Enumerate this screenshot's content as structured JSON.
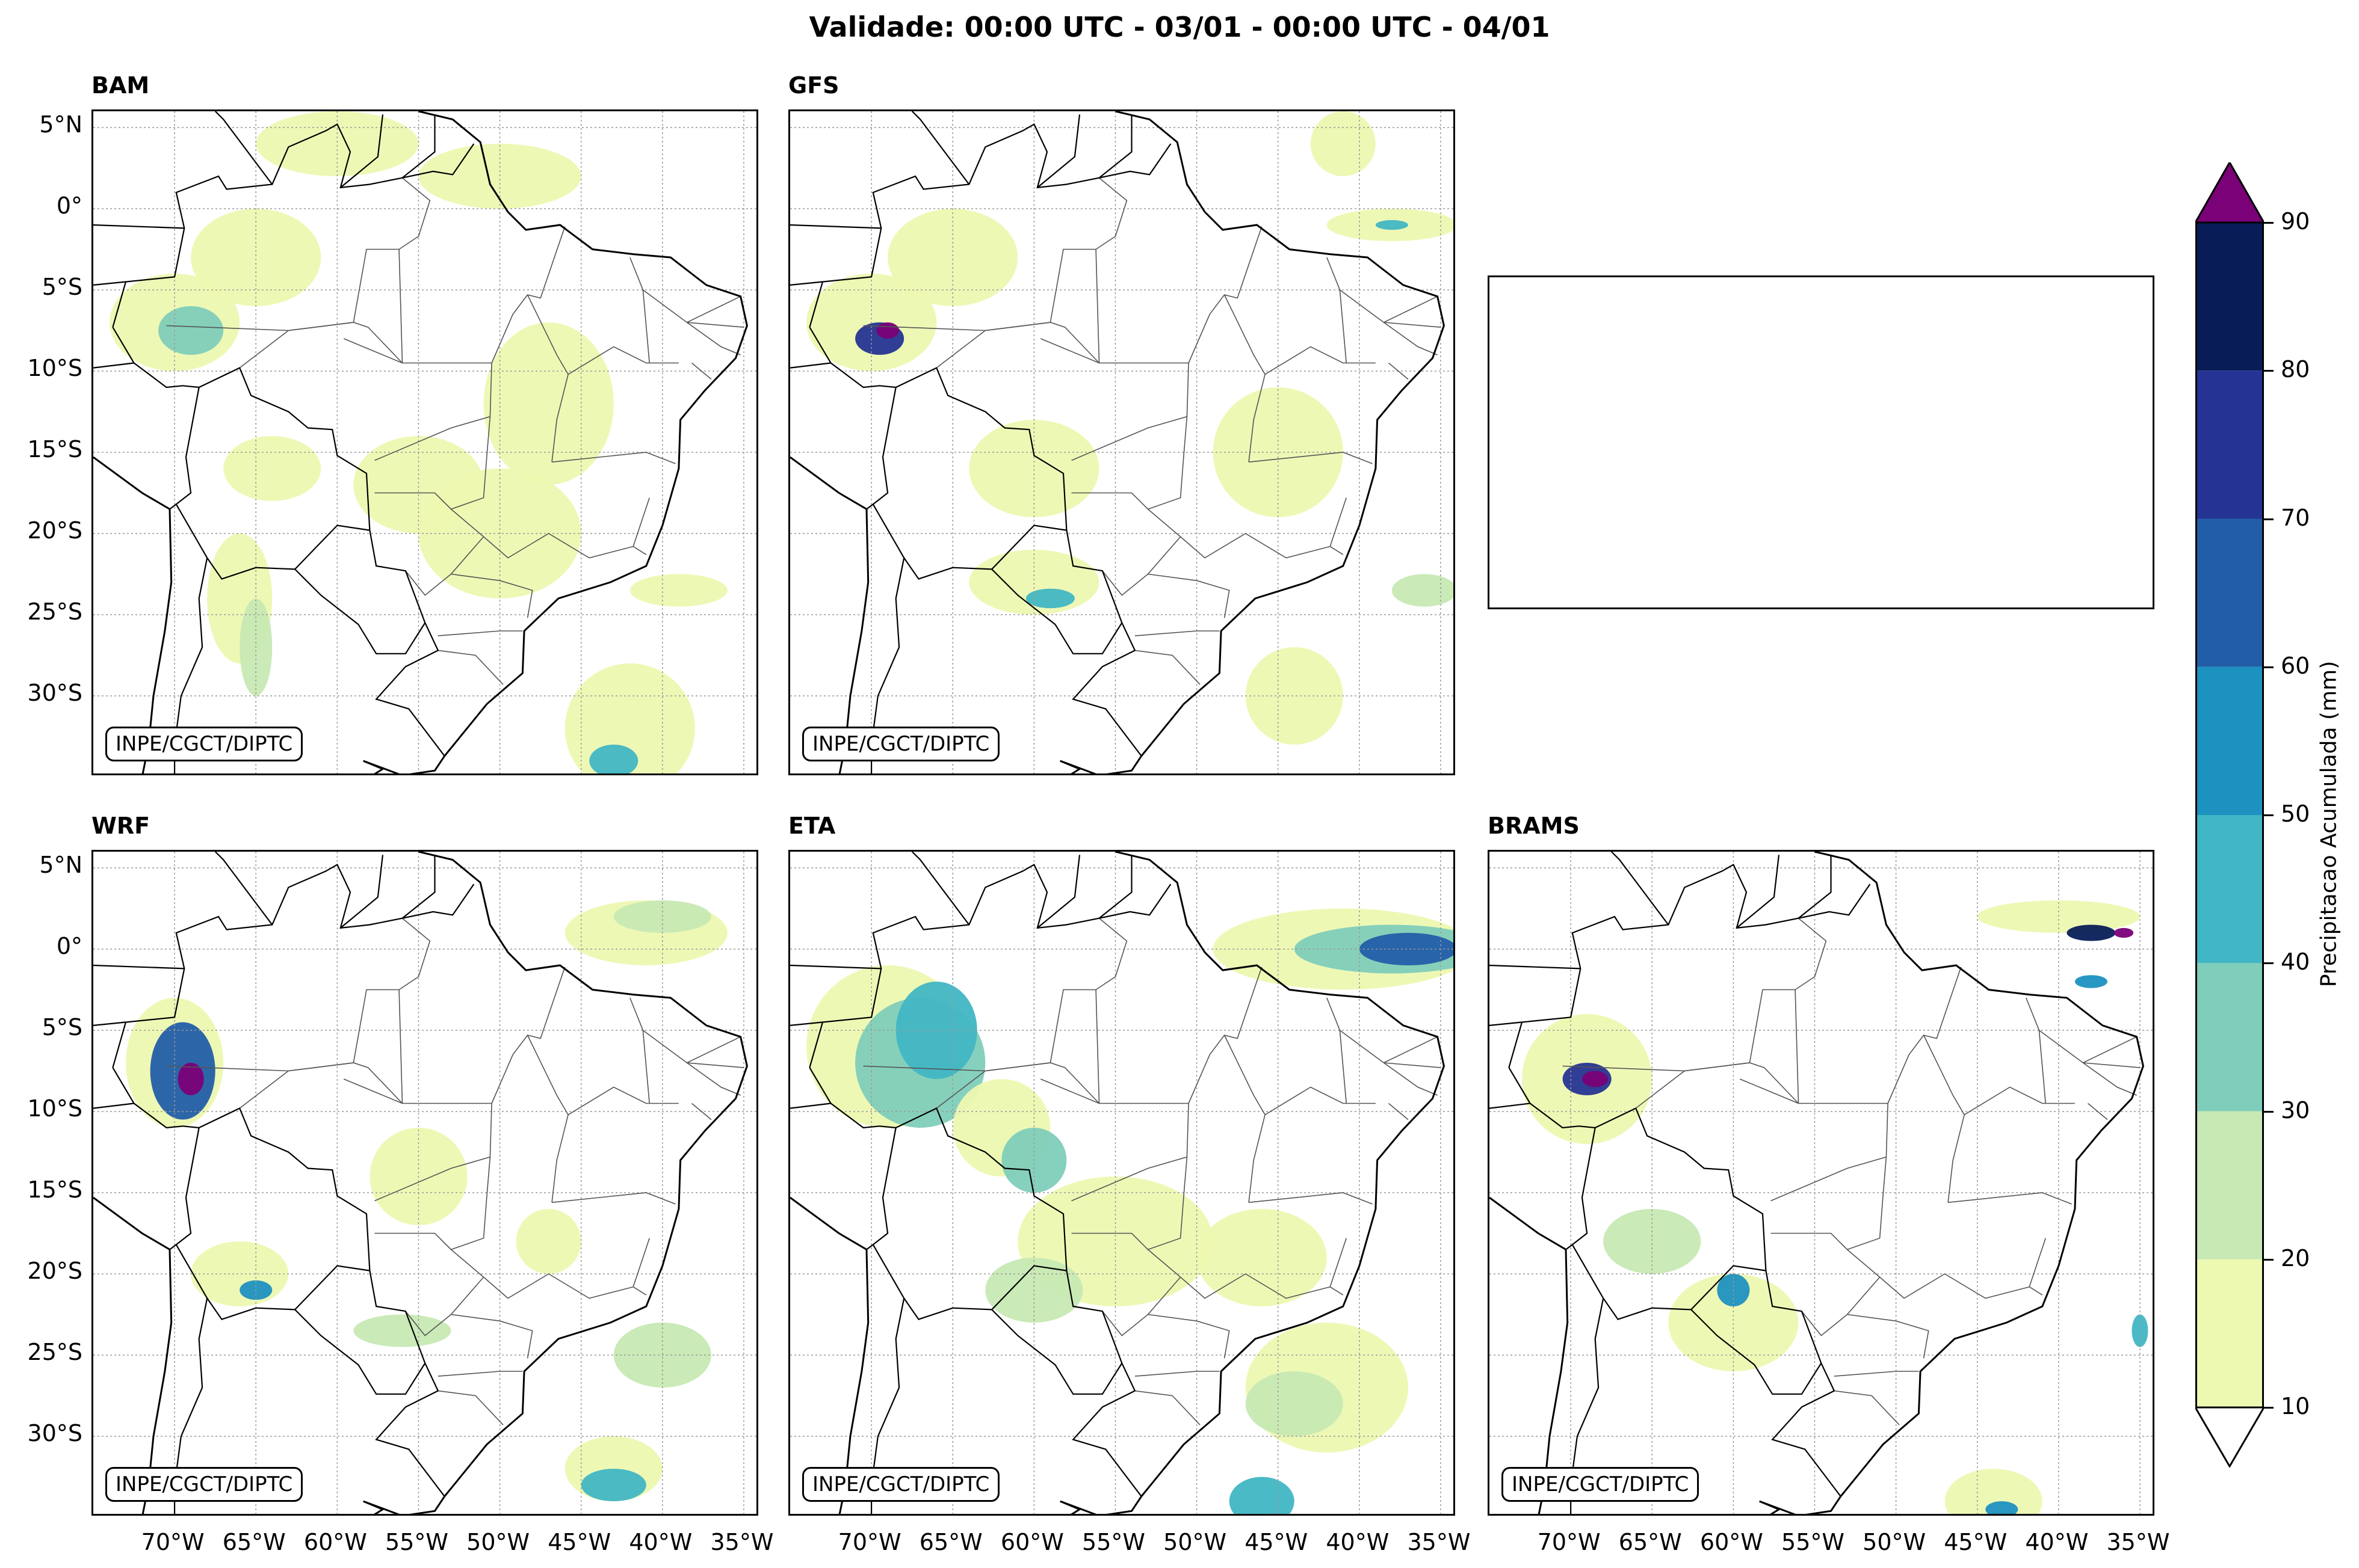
{
  "figure": {
    "title": "Validade: 00:00 UTC - 03/01 - 00:00 UTC - 04/01",
    "credit": "INPE/CGCT/DIPTC"
  },
  "panels": [
    {
      "id": "bam",
      "name": "BAM",
      "row": 0,
      "col": 0
    },
    {
      "id": "gfs",
      "name": "GFS",
      "row": 0,
      "col": 1
    },
    {
      "id": "wrf",
      "name": "WRF",
      "row": 1,
      "col": 0
    },
    {
      "id": "eta",
      "name": "ETA",
      "row": 1,
      "col": 1
    },
    {
      "id": "brams",
      "name": "BRAMS",
      "row": 1,
      "col": 2
    }
  ],
  "axes": {
    "lat_ticks": [
      "5°N",
      "0°",
      "5°S",
      "10°S",
      "15°S",
      "20°S",
      "25°S",
      "30°S"
    ],
    "lon_ticks": [
      "70°W",
      "65°W",
      "60°W",
      "55°W",
      "50°W",
      "45°W",
      "40°W",
      "35°W"
    ],
    "lat_range": [
      -35,
      6
    ],
    "lon_range": [
      -75,
      -34
    ]
  },
  "colorbar": {
    "label": "Precipitacao Acumulada (mm)",
    "ticks": [
      "10",
      "20",
      "30",
      "40",
      "50",
      "60",
      "70",
      "80",
      "90"
    ],
    "bottom_extra_tick": "10",
    "colors": [
      "#edf8b1",
      "#c7e9b4",
      "#7fcdbb",
      "#41b6c4",
      "#1d91c0",
      "#225ea8",
      "#253494",
      "#081d58"
    ],
    "over_color": "#7a0177",
    "under_color": "#ffffff"
  }
}
